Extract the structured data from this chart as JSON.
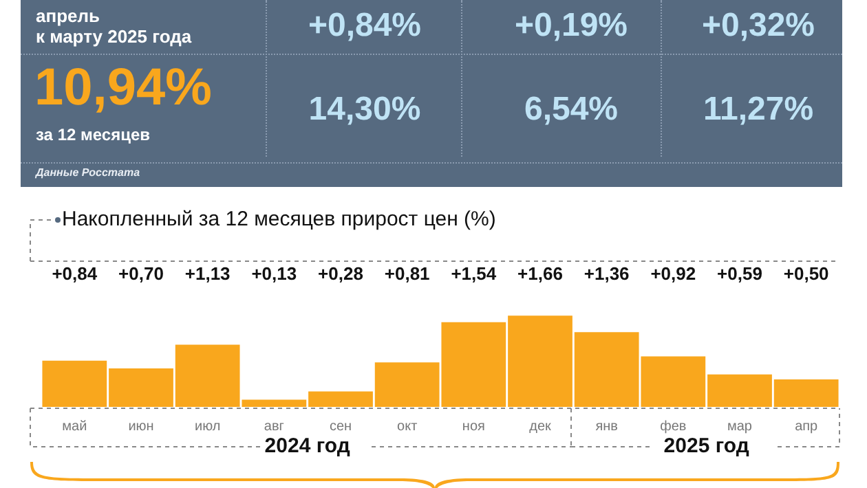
{
  "chart_data": [
    {
      "type": "other",
      "annotations": [
        "апрель\nк марту 2025 года",
        "+0,84%",
        "+0,19%",
        "+0,32%",
        "10,94%",
        "за 12 месяцев",
        "14,30%",
        "6,54%",
        "11,27%",
        "Данные Росстата"
      ]
    },
    {
      "type": "bar",
      "title": "Накопленный за 12 месяцев прирост цен (%)",
      "categories": [
        "май",
        "июн",
        "июл",
        "авг",
        "сен",
        "окт",
        "ноя",
        "дек",
        "янв",
        "фев",
        "мар",
        "апр"
      ],
      "values": [
        0.84,
        0.7,
        1.13,
        0.13,
        0.28,
        0.81,
        1.54,
        1.66,
        1.36,
        0.92,
        0.59,
        0.5
      ],
      "value_labels": [
        "+0,84",
        "+0,70",
        "+1,13",
        "+0,13",
        "+0,28",
        "+0,81",
        "+1,54",
        "+1,66",
        "+1,36",
        "+0,92",
        "+0,59",
        "+0,50"
      ],
      "color": "#f9a71d",
      "annotations": [
        "2024 год",
        "2025 год"
      ],
      "relative": false
    }
  ]
}
